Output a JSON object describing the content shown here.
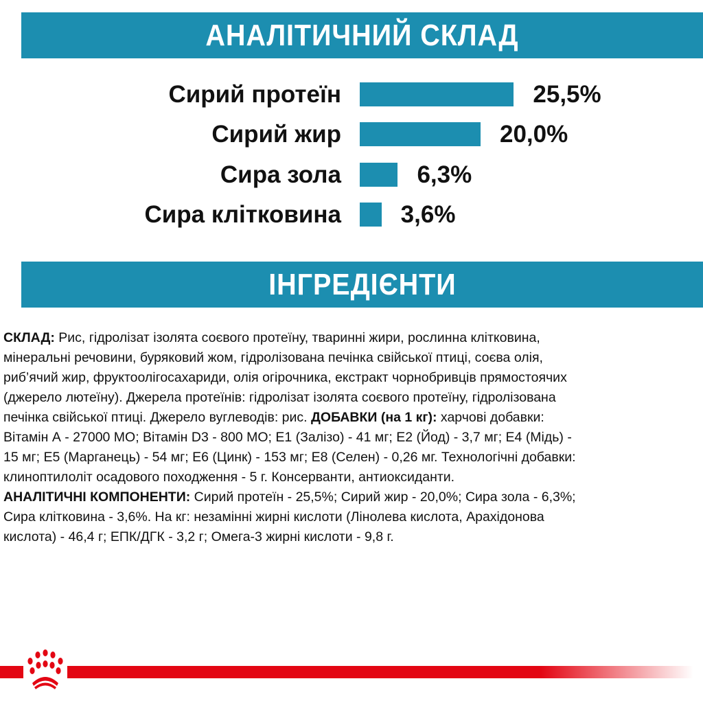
{
  "header": {
    "title": "АНАЛІТИЧНИЙ СКЛАД"
  },
  "chart_data": {
    "type": "bar",
    "orientation": "horizontal",
    "categories": [
      "Сирий протеїн",
      "Сирий жир",
      "Сира зола",
      "Сира клітковина"
    ],
    "values": [
      25.5,
      20.0,
      6.3,
      3.6
    ],
    "value_labels": [
      "25,5%",
      "20,0%",
      "6,3%",
      "3,6%"
    ],
    "unit": "%",
    "bar_color": "#1c8eb0",
    "grid": false
  },
  "ingredients": {
    "title": "ІНГРЕДІЄНТИ",
    "lines": [
      [
        {
          "t": "СКЛАД:",
          "b": true
        },
        {
          "t": " Рис, гідролізат ізолята соєвого протеїну, тваринні жири, рослинна клітковина,"
        }
      ],
      [
        {
          "t": "мінеральні речовини, буряковий жом, гідролізована печінка свійської птиці, соєва олія,"
        }
      ],
      [
        {
          "t": "риб’ячий жир, фруктоолігосахариди, олія огірочника, екстракт чорнобривців прямостоячих"
        }
      ],
      [
        {
          "t": "(джерело лютеїну). Джерела протеїнів: гідролізат ізолята соєвого протеїну, гідролізована"
        }
      ],
      [
        {
          "t": "печінка свійської птиці. Джерело вуглеводів: рис. "
        },
        {
          "t": "ДОБАВКИ (на 1 кг):",
          "b": true
        },
        {
          "t": " харчові добавки:"
        }
      ],
      [
        {
          "t": "Вітамін А - 27000 МО; Вітамін D3 - 800 МО; Е1 (Залізо) - 41 мг; Е2 (Йод) - 3,7 мг; Е4 (Мідь) -"
        }
      ],
      [
        {
          "t": "15 мг; Е5 (Марганець) - 54  мг; Е6 (Цинк) - 153 мг; Е8 (Селен) - 0,26 мг. Технологічні добавки:"
        }
      ],
      [
        {
          "t": "клиноптилоліт осадового походження - 5 г. Консерванти, антиоксиданти."
        }
      ],
      [
        {
          "t": "АНАЛІТИЧНІ КОМПОНЕНТИ:",
          "b": true
        },
        {
          "t": " Сирий протеїн - 25,5%; Сирий жир - 20,0%; Сира зола - 6,3%;"
        }
      ],
      [
        {
          "t": "Сира клітковина - 3,6%. На кг: незамінні жирні кислоти (Лінолева кислота, Арахідонова"
        }
      ],
      [
        {
          "t": "кислота) - 46,4 г; ЕПК/ДГК - 3,2 г; Омега-3 жирні кислоти - 9,8 г."
        }
      ]
    ]
  },
  "footer": {
    "logo_icon": "royal-canin-crown-icon",
    "line_color": "#e30613"
  }
}
